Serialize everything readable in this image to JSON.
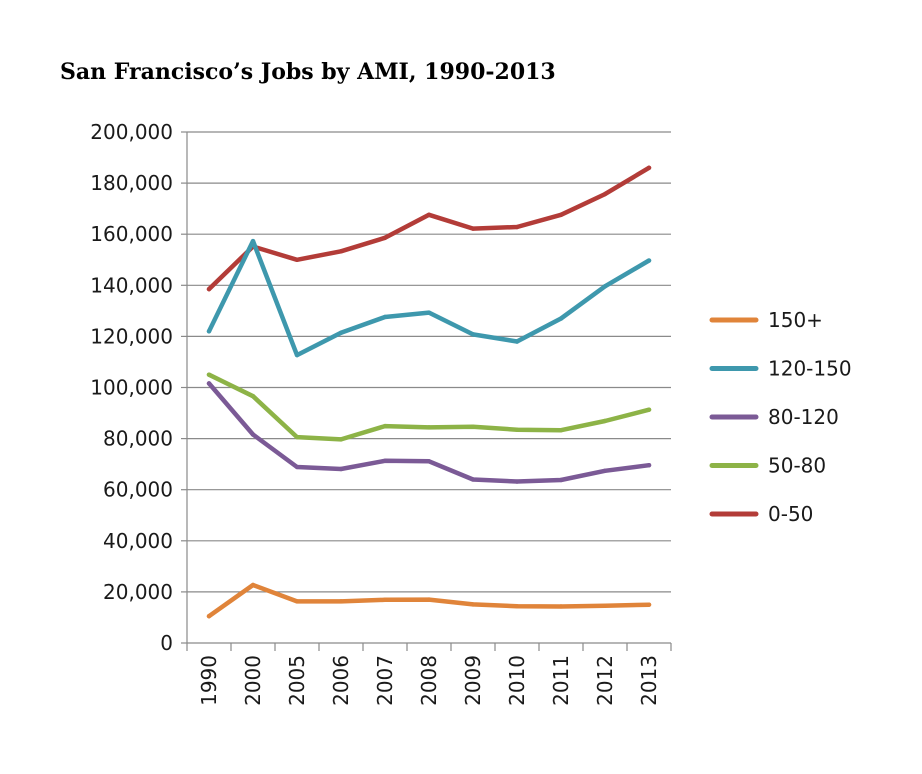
{
  "chart_data": {
    "type": "line",
    "title": "San Francisco’s Jobs by AMI, 1990-2013",
    "xlabel": "",
    "ylabel": "",
    "categories": [
      "1990",
      "2000",
      "2005",
      "2006",
      "2007",
      "2008",
      "2009",
      "2010",
      "2011",
      "2012",
      "2013"
    ],
    "ylim": [
      0,
      200000
    ],
    "yticks": [
      0,
      20000,
      40000,
      60000,
      80000,
      100000,
      120000,
      140000,
      160000,
      180000,
      200000
    ],
    "ytick_labels": [
      "0",
      "20,000",
      "40,000",
      "60,000",
      "80,000",
      "100,000",
      "120,000",
      "140,000",
      "160,000",
      "180,000",
      "200,000"
    ],
    "grid": true,
    "legend_position": "right",
    "series": [
      {
        "name": "150+",
        "color": "#e0843a",
        "values": [
          10500,
          22700,
          16300,
          16300,
          16900,
          17000,
          15100,
          14400,
          14300,
          14600,
          15000
        ]
      },
      {
        "name": "120-150",
        "color": "#3e98ad",
        "values": [
          122000,
          157300,
          112700,
          121400,
          127600,
          129300,
          120800,
          118000,
          127000,
          139600,
          149700
        ]
      },
      {
        "name": "80-120",
        "color": "#7b5a96",
        "values": [
          101600,
          81600,
          68900,
          68100,
          71300,
          71100,
          64000,
          63200,
          63800,
          67400,
          69600
        ]
      },
      {
        "name": "50-80",
        "color": "#8db347",
        "values": [
          105000,
          96600,
          80600,
          79700,
          84900,
          84400,
          84600,
          83500,
          83300,
          86900,
          91300
        ]
      },
      {
        "name": "0-50",
        "color": "#b33c38",
        "values": [
          138500,
          155200,
          150000,
          153300,
          158600,
          167600,
          162200,
          162800,
          167600,
          175700,
          186000
        ]
      }
    ]
  }
}
